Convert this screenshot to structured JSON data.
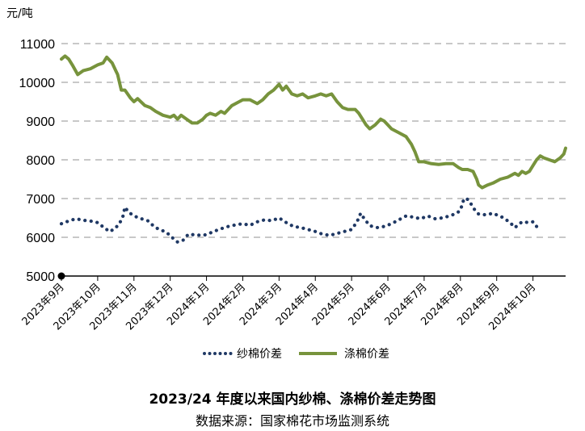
{
  "chart_data": {
    "type": "line",
    "title": "2023/24 年度以来国内纱棉、涤棉价差走势图",
    "source": "数据来源：国家棉花市场监测系统",
    "ylabel": "元/吨",
    "ylim": [
      5000,
      11000
    ],
    "yticks": [
      "5000",
      "6000",
      "7000",
      "8000",
      "9000",
      "10000",
      "11000"
    ],
    "grid": "horizontal-dashed",
    "legend_position": "bottom",
    "x_month_labels": [
      "2023年9月",
      "2023年10月",
      "2023年11月",
      "2023年12月",
      "2024年1月",
      "2024年2月",
      "2024年3月",
      "2024年4月",
      "2024年5月",
      "2024年6月",
      "2024年7月",
      "2024年8月",
      "2024年9月",
      "2024年10月"
    ],
    "x_domain": [
      0,
      13.9
    ],
    "series": [
      {
        "name": "纱棉价差",
        "style": "dotted",
        "color": "#1f3864",
        "points": [
          [
            0.0,
            6350
          ],
          [
            0.2,
            6420
          ],
          [
            0.4,
            6480
          ],
          [
            0.6,
            6440
          ],
          [
            0.8,
            6420
          ],
          [
            1.0,
            6380
          ],
          [
            1.1,
            6300
          ],
          [
            1.2,
            6250
          ],
          [
            1.3,
            6150
          ],
          [
            1.45,
            6200
          ],
          [
            1.6,
            6350
          ],
          [
            1.7,
            6550
          ],
          [
            1.75,
            6780
          ],
          [
            1.85,
            6650
          ],
          [
            2.0,
            6550
          ],
          [
            2.2,
            6480
          ],
          [
            2.4,
            6420
          ],
          [
            2.55,
            6280
          ],
          [
            2.7,
            6200
          ],
          [
            2.85,
            6150
          ],
          [
            3.0,
            6050
          ],
          [
            3.1,
            5950
          ],
          [
            3.2,
            5880
          ],
          [
            3.35,
            5920
          ],
          [
            3.5,
            6080
          ],
          [
            3.7,
            6060
          ],
          [
            3.9,
            6050
          ],
          [
            4.0,
            6070
          ],
          [
            4.2,
            6150
          ],
          [
            4.4,
            6220
          ],
          [
            4.6,
            6280
          ],
          [
            4.8,
            6320
          ],
          [
            5.0,
            6350
          ],
          [
            5.2,
            6310
          ],
          [
            5.4,
            6400
          ],
          [
            5.6,
            6450
          ],
          [
            5.8,
            6430
          ],
          [
            6.0,
            6500
          ],
          [
            6.2,
            6380
          ],
          [
            6.4,
            6280
          ],
          [
            6.6,
            6250
          ],
          [
            6.8,
            6200
          ],
          [
            7.0,
            6150
          ],
          [
            7.2,
            6080
          ],
          [
            7.4,
            6050
          ],
          [
            7.6,
            6100
          ],
          [
            7.8,
            6150
          ],
          [
            8.0,
            6200
          ],
          [
            8.15,
            6400
          ],
          [
            8.25,
            6620
          ],
          [
            8.35,
            6480
          ],
          [
            8.5,
            6300
          ],
          [
            8.7,
            6250
          ],
          [
            8.9,
            6280
          ],
          [
            9.1,
            6350
          ],
          [
            9.3,
            6450
          ],
          [
            9.5,
            6550
          ],
          [
            9.7,
            6520
          ],
          [
            9.9,
            6480
          ],
          [
            10.1,
            6550
          ],
          [
            10.3,
            6480
          ],
          [
            10.5,
            6500
          ],
          [
            10.7,
            6550
          ],
          [
            10.9,
            6620
          ],
          [
            11.0,
            6700
          ],
          [
            11.1,
            7000
          ],
          [
            11.2,
            6980
          ],
          [
            11.3,
            6850
          ],
          [
            11.4,
            6700
          ],
          [
            11.5,
            6600
          ],
          [
            11.7,
            6580
          ],
          [
            11.9,
            6620
          ],
          [
            12.0,
            6580
          ],
          [
            12.2,
            6500
          ],
          [
            12.4,
            6350
          ],
          [
            12.5,
            6250
          ],
          [
            12.7,
            6400
          ],
          [
            12.9,
            6380
          ],
          [
            13.0,
            6400
          ],
          [
            13.1,
            6280
          ],
          [
            13.2,
            6250
          ]
        ]
      },
      {
        "name": "涤棉价差",
        "style": "solid",
        "color": "#77933c",
        "points": [
          [
            0.0,
            10600
          ],
          [
            0.1,
            10680
          ],
          [
            0.2,
            10600
          ],
          [
            0.3,
            10450
          ],
          [
            0.45,
            10200
          ],
          [
            0.6,
            10300
          ],
          [
            0.8,
            10350
          ],
          [
            1.0,
            10450
          ],
          [
            1.15,
            10500
          ],
          [
            1.25,
            10650
          ],
          [
            1.4,
            10500
          ],
          [
            1.5,
            10300
          ],
          [
            1.55,
            10200
          ],
          [
            1.65,
            9800
          ],
          [
            1.75,
            9800
          ],
          [
            1.9,
            9600
          ],
          [
            2.0,
            9500
          ],
          [
            2.1,
            9580
          ],
          [
            2.3,
            9400
          ],
          [
            2.45,
            9350
          ],
          [
            2.6,
            9250
          ],
          [
            2.8,
            9150
          ],
          [
            3.0,
            9100
          ],
          [
            3.1,
            9150
          ],
          [
            3.2,
            9050
          ],
          [
            3.3,
            9150
          ],
          [
            3.45,
            9050
          ],
          [
            3.6,
            8950
          ],
          [
            3.75,
            8950
          ],
          [
            3.9,
            9050
          ],
          [
            4.0,
            9150
          ],
          [
            4.1,
            9200
          ],
          [
            4.25,
            9150
          ],
          [
            4.4,
            9250
          ],
          [
            4.5,
            9200
          ],
          [
            4.7,
            9400
          ],
          [
            4.9,
            9500
          ],
          [
            5.0,
            9550
          ],
          [
            5.2,
            9550
          ],
          [
            5.4,
            9450
          ],
          [
            5.55,
            9550
          ],
          [
            5.7,
            9700
          ],
          [
            5.85,
            9800
          ],
          [
            6.0,
            9950
          ],
          [
            6.1,
            9800
          ],
          [
            6.2,
            9900
          ],
          [
            6.35,
            9700
          ],
          [
            6.5,
            9650
          ],
          [
            6.65,
            9700
          ],
          [
            6.8,
            9600
          ],
          [
            7.0,
            9650
          ],
          [
            7.15,
            9700
          ],
          [
            7.3,
            9650
          ],
          [
            7.45,
            9700
          ],
          [
            7.6,
            9500
          ],
          [
            7.75,
            9350
          ],
          [
            7.9,
            9300
          ],
          [
            8.1,
            9300
          ],
          [
            8.2,
            9200
          ],
          [
            8.3,
            9050
          ],
          [
            8.4,
            8900
          ],
          [
            8.5,
            8800
          ],
          [
            8.65,
            8900
          ],
          [
            8.8,
            9050
          ],
          [
            8.9,
            9000
          ],
          [
            9.0,
            8900
          ],
          [
            9.1,
            8800
          ],
          [
            9.3,
            8700
          ],
          [
            9.5,
            8600
          ],
          [
            9.65,
            8400
          ],
          [
            9.75,
            8200
          ],
          [
            9.85,
            7950
          ],
          [
            10.0,
            7950
          ],
          [
            10.2,
            7900
          ],
          [
            10.4,
            7880
          ],
          [
            10.6,
            7900
          ],
          [
            10.8,
            7900
          ],
          [
            10.95,
            7800
          ],
          [
            11.05,
            7750
          ],
          [
            11.2,
            7750
          ],
          [
            11.35,
            7700
          ],
          [
            11.45,
            7500
          ],
          [
            11.5,
            7350
          ],
          [
            11.6,
            7280
          ],
          [
            11.75,
            7350
          ],
          [
            11.9,
            7400
          ],
          [
            12.1,
            7500
          ],
          [
            12.3,
            7550
          ],
          [
            12.5,
            7650
          ],
          [
            12.6,
            7600
          ],
          [
            12.7,
            7700
          ],
          [
            12.8,
            7650
          ],
          [
            12.9,
            7700
          ],
          [
            13.0,
            7850
          ],
          [
            13.1,
            8000
          ],
          [
            13.2,
            8100
          ],
          [
            13.3,
            8050
          ],
          [
            13.45,
            8000
          ],
          [
            13.6,
            7950
          ],
          [
            13.75,
            8050
          ],
          [
            13.85,
            8150
          ],
          [
            13.9,
            8300
          ]
        ]
      }
    ]
  }
}
